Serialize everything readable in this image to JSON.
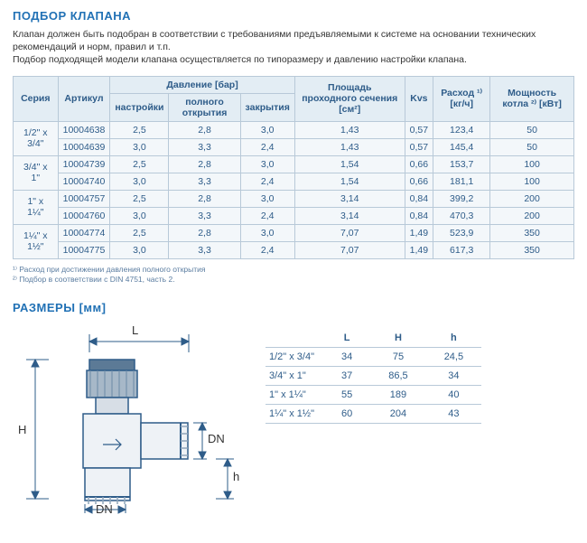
{
  "titles": {
    "selection": "ПОДБОР КЛАПАНА",
    "dimensions": "РАЗМЕРЫ [мм]"
  },
  "intro": {
    "p1": "Клапан должен быть подобран в соответствии с требованиями предъявляемыми к системе на основании технических рекомендаций и норм, правил и т.п.",
    "p2": "Подбор подходящей модели клапана осуществляется по типоразмеру и давлению настройки клапана."
  },
  "spec_table": {
    "headers": {
      "series": "Серия",
      "article": "Артикул",
      "pressure_group": "Давление [бар]",
      "p_setting": "настройки",
      "p_fullopen": "полного открытия",
      "p_close": "закрытия",
      "area": "Площадь проходного сечения [см²]",
      "kvs": "Kvs",
      "flow": "Расход ¹⁾ [кг/ч]",
      "power": "Мощность котла ²⁾ [кВт]"
    },
    "groups": [
      {
        "series": "1/2\" x 3/4\"",
        "rows": [
          {
            "article": "10004638",
            "p_set": "2,5",
            "p_open": "2,8",
            "p_close": "3,0",
            "area": "1,43",
            "kvs": "0,57",
            "flow": "123,4",
            "power": "50"
          },
          {
            "article": "10004639",
            "p_set": "3,0",
            "p_open": "3,3",
            "p_close": "2,4",
            "area": "1,43",
            "kvs": "0,57",
            "flow": "145,4",
            "power": "50"
          }
        ]
      },
      {
        "series": "3/4\" x 1\"",
        "rows": [
          {
            "article": "10004739",
            "p_set": "2,5",
            "p_open": "2,8",
            "p_close": "3,0",
            "area": "1,54",
            "kvs": "0,66",
            "flow": "153,7",
            "power": "100"
          },
          {
            "article": "10004740",
            "p_set": "3,0",
            "p_open": "3,3",
            "p_close": "2,4",
            "area": "1,54",
            "kvs": "0,66",
            "flow": "181,1",
            "power": "100"
          }
        ]
      },
      {
        "series": "1\" x 1¼\"",
        "rows": [
          {
            "article": "10004757",
            "p_set": "2,5",
            "p_open": "2,8",
            "p_close": "3,0",
            "area": "3,14",
            "kvs": "0,84",
            "flow": "399,2",
            "power": "200"
          },
          {
            "article": "10004760",
            "p_set": "3,0",
            "p_open": "3,3",
            "p_close": "2,4",
            "area": "3,14",
            "kvs": "0,84",
            "flow": "470,3",
            "power": "200"
          }
        ]
      },
      {
        "series": "1¼\" x 1½\"",
        "rows": [
          {
            "article": "10004774",
            "p_set": "2,5",
            "p_open": "2,8",
            "p_close": "3,0",
            "area": "7,07",
            "kvs": "1,49",
            "flow": "523,9",
            "power": "350"
          },
          {
            "article": "10004775",
            "p_set": "3,0",
            "p_open": "3,3",
            "p_close": "2,4",
            "area": "7,07",
            "kvs": "1,49",
            "flow": "617,3",
            "power": "350"
          }
        ]
      }
    ]
  },
  "footnotes": {
    "f1": "¹⁾ Расход при достижении давления полного открытия",
    "f2": "²⁾ Подбор в соответствии с DIN 4751, часть 2."
  },
  "dims_table": {
    "headers": {
      "blank": "",
      "L": "L",
      "H": "H",
      "h": "h"
    },
    "rows": [
      {
        "series": "1/2\" x 3/4\"",
        "L": "34",
        "H": "75",
        "h": "24,5"
      },
      {
        "series": "3/4\" x 1\"",
        "L": "37",
        "H": "86,5",
        "h": "34"
      },
      {
        "series": "1\" x 1¼\"",
        "L": "55",
        "H": "189",
        "h": "40"
      },
      {
        "series": "1¼\" x 1½\"",
        "L": "60",
        "H": "204",
        "h": "43"
      }
    ]
  },
  "diagram_labels": {
    "L": "L",
    "H": "H",
    "h": "h",
    "DN1": "DN",
    "DN2": "DN"
  },
  "style": {
    "accent_color": "#2171b5",
    "table_bg": "#f3f7fa",
    "header_bg": "#e3edf4",
    "border_color": "#b8c9d8",
    "text_color": "#2e5c89"
  }
}
